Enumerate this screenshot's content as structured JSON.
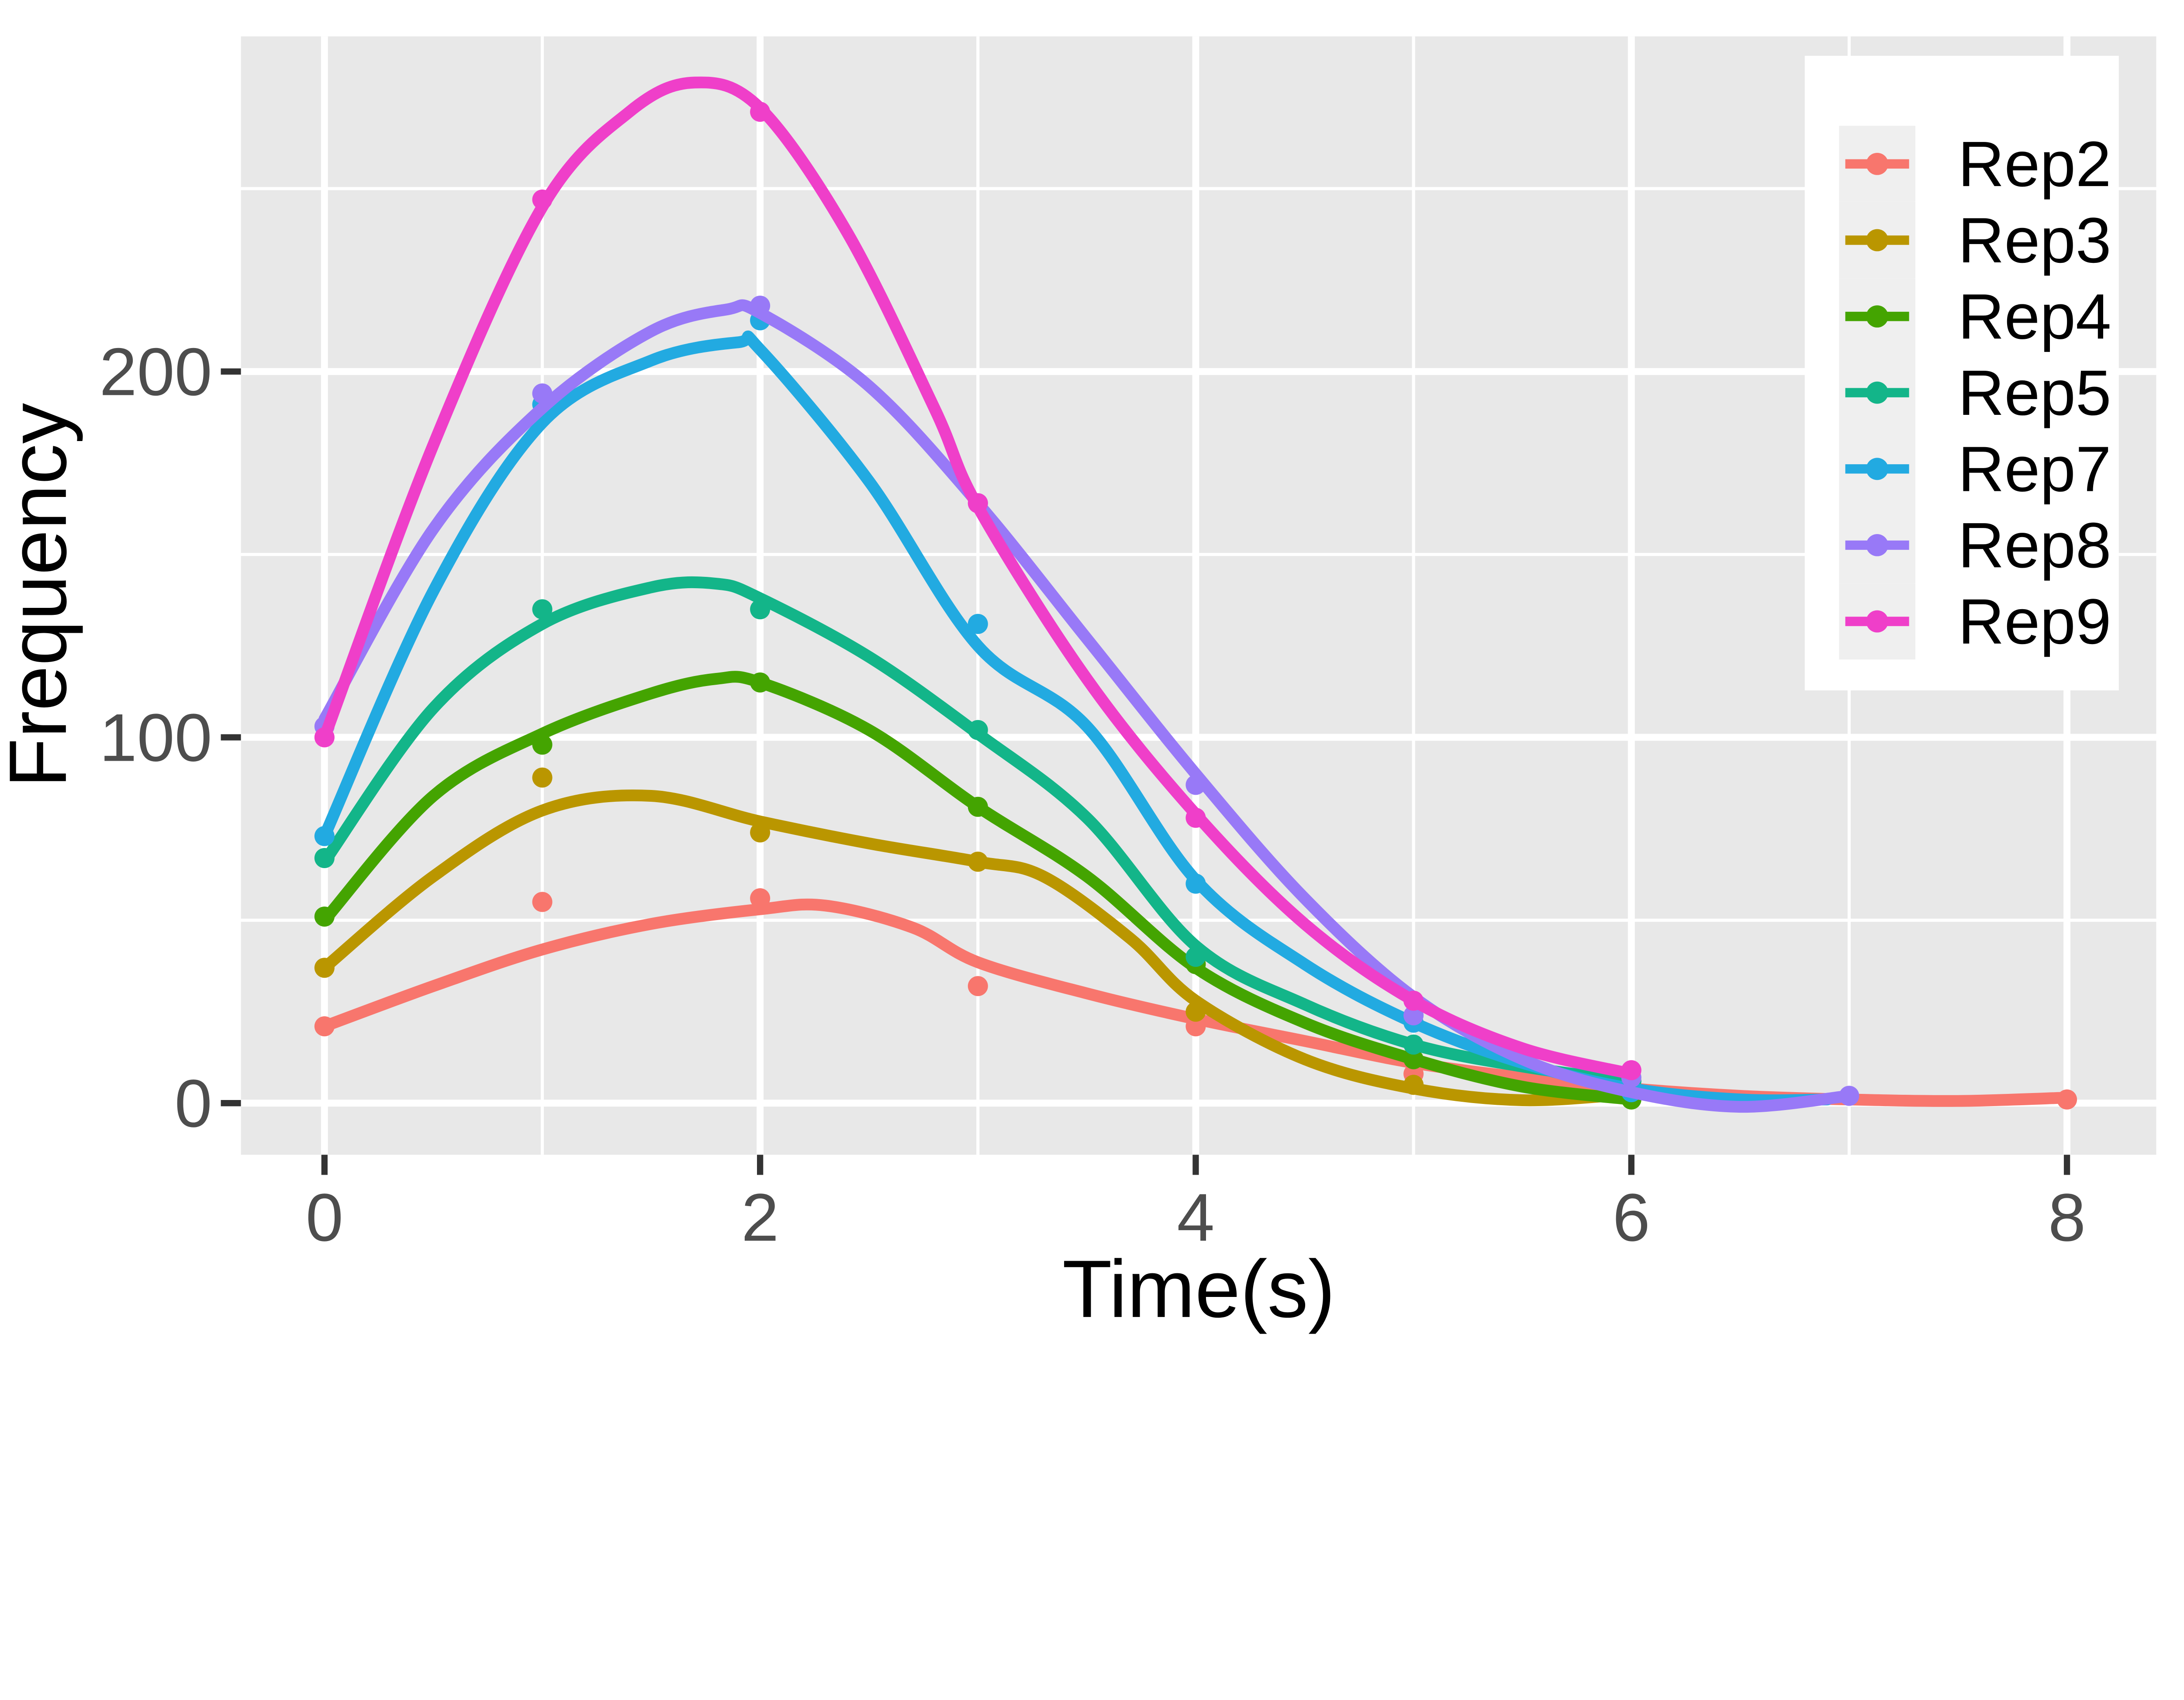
{
  "chart_data": {
    "type": "scatter",
    "subtype": "points-with-loess-smooth-lines",
    "title": "",
    "xlabel": "Time(s)",
    "ylabel": "Frequency",
    "x_tick_labels": [
      "0",
      "2",
      "4",
      "6",
      "8"
    ],
    "x_major_ticks": [
      0,
      2,
      4,
      6,
      8
    ],
    "x_minor_ticks": [
      1,
      3,
      5,
      7
    ],
    "y_tick_labels": [
      "0",
      "100",
      "200"
    ],
    "y_major_ticks": [
      0,
      100,
      200
    ],
    "y_minor_ticks": [
      50,
      150,
      250
    ],
    "xlim": [
      -0.38,
      8.41
    ],
    "ylim": [
      -14,
      291
    ],
    "grid": "white major and minor gridlines on gray panel",
    "legend_position": "top-right overlay",
    "series": [
      {
        "name": "Rep2",
        "color": "#F8766D",
        "points": [
          [
            0,
            21
          ],
          [
            1,
            55
          ],
          [
            2,
            56
          ],
          [
            3,
            32
          ],
          [
            4,
            21
          ],
          [
            5,
            8
          ],
          [
            6,
            3
          ],
          [
            8,
            1
          ]
        ],
        "smooth": [
          [
            0,
            21
          ],
          [
            0.5,
            32
          ],
          [
            1,
            42
          ],
          [
            1.5,
            49
          ],
          [
            2,
            53
          ],
          [
            2.3,
            54
          ],
          [
            2.7,
            48
          ],
          [
            3,
            38.5
          ],
          [
            3.5,
            30
          ],
          [
            4,
            23
          ],
          [
            4.5,
            17
          ],
          [
            5,
            11
          ],
          [
            5.5,
            7
          ],
          [
            6,
            4
          ],
          [
            6.5,
            2
          ],
          [
            7,
            1
          ],
          [
            7.5,
            0.6
          ],
          [
            8,
            1.5
          ]
        ]
      },
      {
        "name": "Rep3",
        "color": "#BA9600",
        "points": [
          [
            0,
            37
          ],
          [
            1,
            89
          ],
          [
            2,
            74
          ],
          [
            3,
            66
          ],
          [
            4,
            25
          ],
          [
            5,
            5
          ],
          [
            6,
            2
          ]
        ],
        "smooth": [
          [
            0,
            37
          ],
          [
            0.5,
            62
          ],
          [
            1,
            80
          ],
          [
            1.5,
            84
          ],
          [
            2,
            77
          ],
          [
            2.5,
            71
          ],
          [
            3,
            66
          ],
          [
            3.3,
            62
          ],
          [
            3.7,
            45
          ],
          [
            4,
            28
          ],
          [
            4.5,
            12
          ],
          [
            5,
            4
          ],
          [
            5.5,
            0.8
          ],
          [
            6,
            2.5
          ]
        ]
      },
      {
        "name": "Rep4",
        "color": "#44A401",
        "points": [
          [
            0,
            51
          ],
          [
            1,
            98
          ],
          [
            2,
            115
          ],
          [
            3,
            81
          ],
          [
            4,
            38
          ],
          [
            5,
            12
          ],
          [
            6,
            1
          ]
        ],
        "smooth": [
          [
            0,
            50
          ],
          [
            0.5,
            84
          ],
          [
            1,
            101
          ],
          [
            1.5,
            112
          ],
          [
            1.8,
            116
          ],
          [
            2,
            115
          ],
          [
            2.5,
            102
          ],
          [
            3,
            81
          ],
          [
            3.5,
            62
          ],
          [
            4,
            37
          ],
          [
            4.5,
            22
          ],
          [
            5,
            12
          ],
          [
            5.5,
            4.5
          ],
          [
            6,
            1
          ]
        ]
      },
      {
        "name": "Rep5",
        "color": "#13B589",
        "points": [
          [
            0,
            67
          ],
          [
            1,
            135
          ],
          [
            2,
            135
          ],
          [
            3,
            102
          ],
          [
            4,
            40
          ],
          [
            5,
            16
          ],
          [
            6,
            6
          ]
        ],
        "smooth": [
          [
            0,
            66
          ],
          [
            0.5,
            108
          ],
          [
            1,
            131
          ],
          [
            1.5,
            141
          ],
          [
            1.8,
            142
          ],
          [
            2,
            138
          ],
          [
            2.5,
            122
          ],
          [
            3,
            101
          ],
          [
            3.5,
            78
          ],
          [
            4,
            43
          ],
          [
            4.5,
            27
          ],
          [
            5,
            16
          ],
          [
            5.5,
            10
          ],
          [
            6,
            6
          ]
        ]
      },
      {
        "name": "Rep7",
        "color": "#22AAE1",
        "points": [
          [
            0,
            73
          ],
          [
            1,
            191
          ],
          [
            2,
            214
          ],
          [
            3,
            131
          ],
          [
            4,
            60
          ],
          [
            5,
            22
          ],
          [
            6,
            3
          ]
        ],
        "smooth": [
          [
            0,
            73
          ],
          [
            0.5,
            140
          ],
          [
            1,
            186
          ],
          [
            1.5,
            203
          ],
          [
            1.9,
            208
          ],
          [
            2,
            206
          ],
          [
            2.5,
            170
          ],
          [
            3,
            125
          ],
          [
            3.5,
            103
          ],
          [
            4,
            61
          ],
          [
            4.5,
            38
          ],
          [
            5,
            22
          ],
          [
            5.5,
            11
          ],
          [
            6,
            4
          ],
          [
            6.5,
            1
          ],
          [
            6.9,
            1
          ]
        ]
      },
      {
        "name": "Rep8",
        "color": "#9879F7",
        "points": [
          [
            0,
            103
          ],
          [
            1,
            194
          ],
          [
            2,
            218
          ],
          [
            3,
            164
          ],
          [
            4,
            87
          ],
          [
            5,
            24
          ],
          [
            6,
            7
          ],
          [
            7,
            2
          ]
        ],
        "smooth": [
          [
            0,
            105
          ],
          [
            0.5,
            157
          ],
          [
            1,
            190
          ],
          [
            1.5,
            211
          ],
          [
            1.85,
            217
          ],
          [
            2,
            216
          ],
          [
            2.5,
            196
          ],
          [
            3,
            164
          ],
          [
            3.5,
            127
          ],
          [
            4,
            90
          ],
          [
            4.5,
            56
          ],
          [
            5,
            29
          ],
          [
            5.5,
            12
          ],
          [
            6,
            3
          ],
          [
            6.5,
            -1
          ],
          [
            7,
            2
          ]
        ]
      },
      {
        "name": "Rep9",
        "color": "#EF3FC9",
        "points": [
          [
            0,
            100
          ],
          [
            1,
            247
          ],
          [
            2,
            271
          ],
          [
            3,
            164
          ],
          [
            4,
            78
          ],
          [
            5,
            28
          ],
          [
            6,
            9
          ]
        ],
        "smooth": [
          [
            0,
            100
          ],
          [
            0.5,
            180
          ],
          [
            1,
            245
          ],
          [
            1.4,
            271
          ],
          [
            1.7,
            279
          ],
          [
            2,
            272
          ],
          [
            2.4,
            238
          ],
          [
            2.8,
            190
          ],
          [
            3,
            163
          ],
          [
            3.5,
            116
          ],
          [
            4,
            79
          ],
          [
            4.5,
            49
          ],
          [
            5,
            28
          ],
          [
            5.5,
            15
          ],
          [
            6,
            8
          ]
        ]
      }
    ]
  },
  "style_colors": {
    "panel_background": "#E8E8E8",
    "grid_color": "#FFFFFF",
    "tick_mark_color": "#333333",
    "tick_label_color": "#4D4D4D",
    "axis_title_color": "#000000",
    "legend_background": "#FFFFFF",
    "legend_key_background": "#EFEFEF",
    "page_background": "#FFFFFF"
  }
}
